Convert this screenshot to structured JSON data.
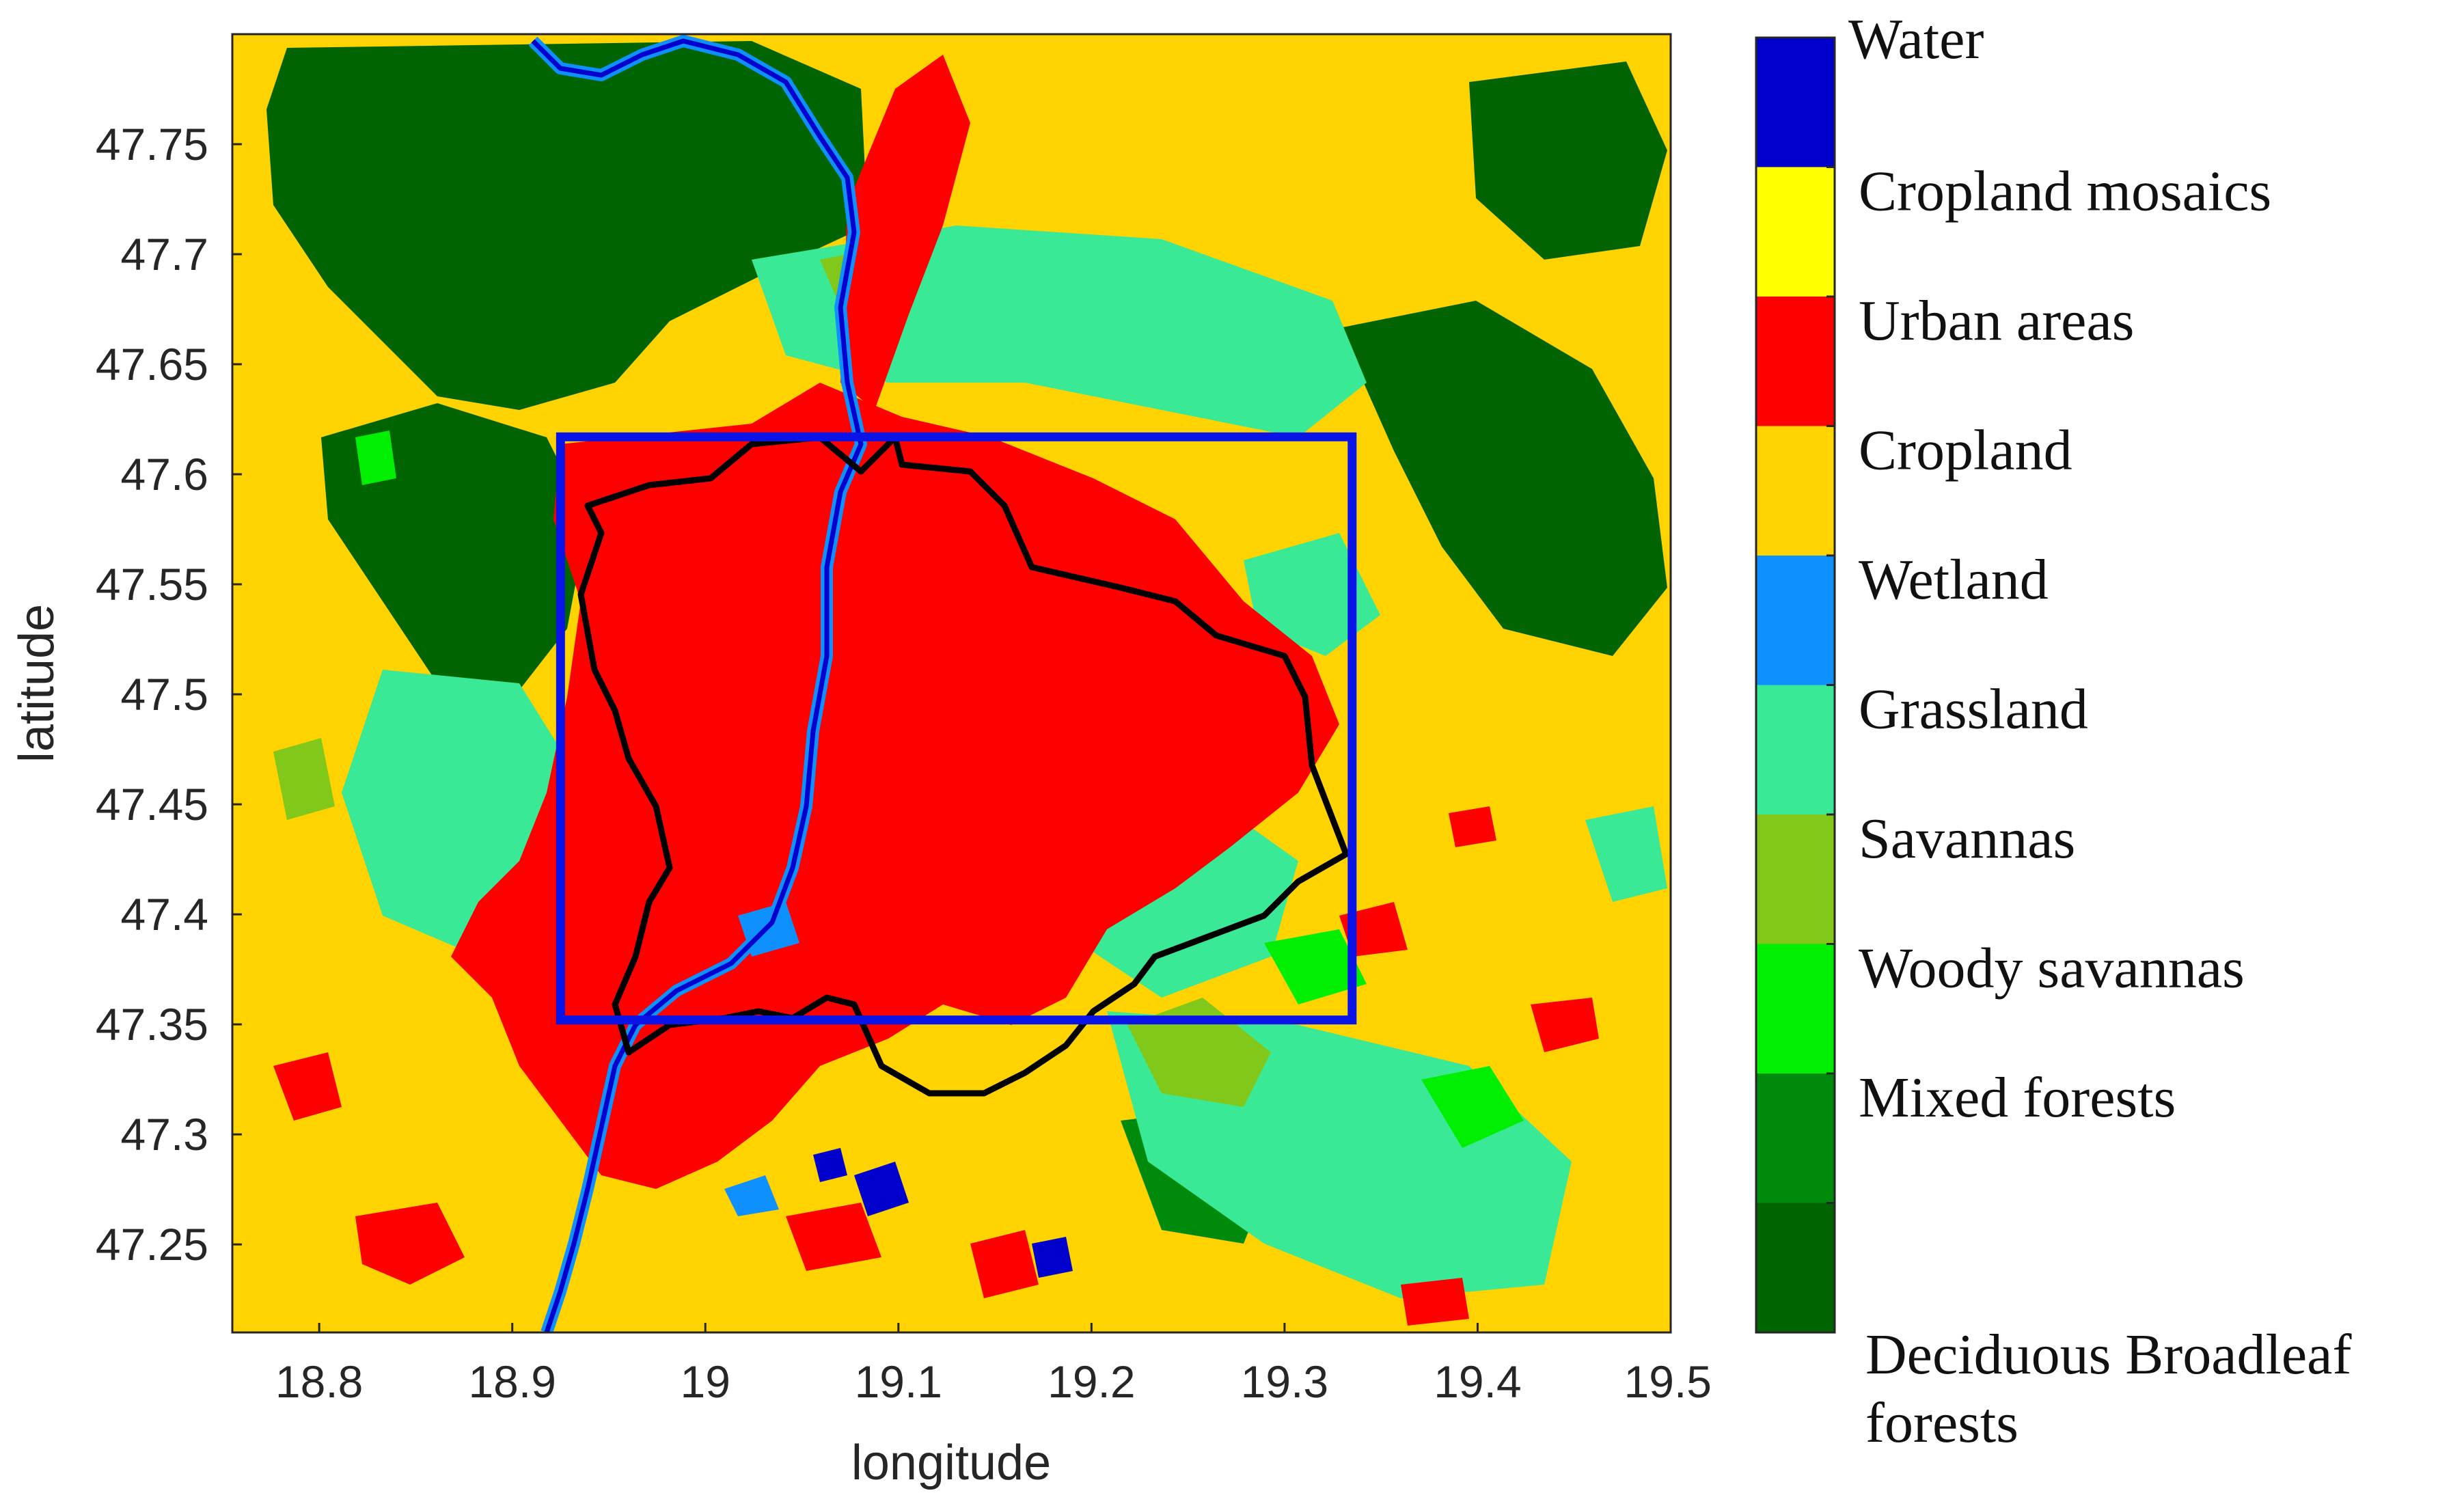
{
  "map": {
    "xlabel": "longitude",
    "ylabel": "latitude",
    "xlim": [
      18.755,
      19.5
    ],
    "ylim": [
      47.21,
      47.8
    ],
    "xticks": [
      "18.8",
      "18.9",
      "19",
      "19.1",
      "19.2",
      "19.3",
      "19.4",
      "19.5"
    ],
    "yticks": [
      "47.75",
      "47.7",
      "47.65",
      "47.6",
      "47.55",
      "47.5",
      "47.45",
      "47.4",
      "47.35",
      "47.3",
      "47.25"
    ],
    "study_box": {
      "lon": [
        18.925,
        19.335
      ],
      "lat": [
        47.352,
        47.617
      ],
      "color": "#0a14e6"
    },
    "boundary_color": "#000000"
  },
  "legend": {
    "classes": [
      {
        "label": "Water",
        "color": "#0000cd"
      },
      {
        "label": "Cropland mosaics",
        "color": "#ffff00"
      },
      {
        "label": "Urban areas",
        "color": "#ff0000"
      },
      {
        "label": "Cropland",
        "color": "#ffd300"
      },
      {
        "label": "Wetland",
        "color": "#0f90ff"
      },
      {
        "label": "Grassland",
        "color": "#3ae996"
      },
      {
        "label": "Savannas",
        "color": "#82c81a"
      },
      {
        "label": "Woody savannas",
        "color": "#00ee00"
      },
      {
        "label": "Mixed forests",
        "color": "#008a0c"
      },
      {
        "label": "Deciduous Broadleaf forests",
        "color": "#006400"
      }
    ]
  }
}
